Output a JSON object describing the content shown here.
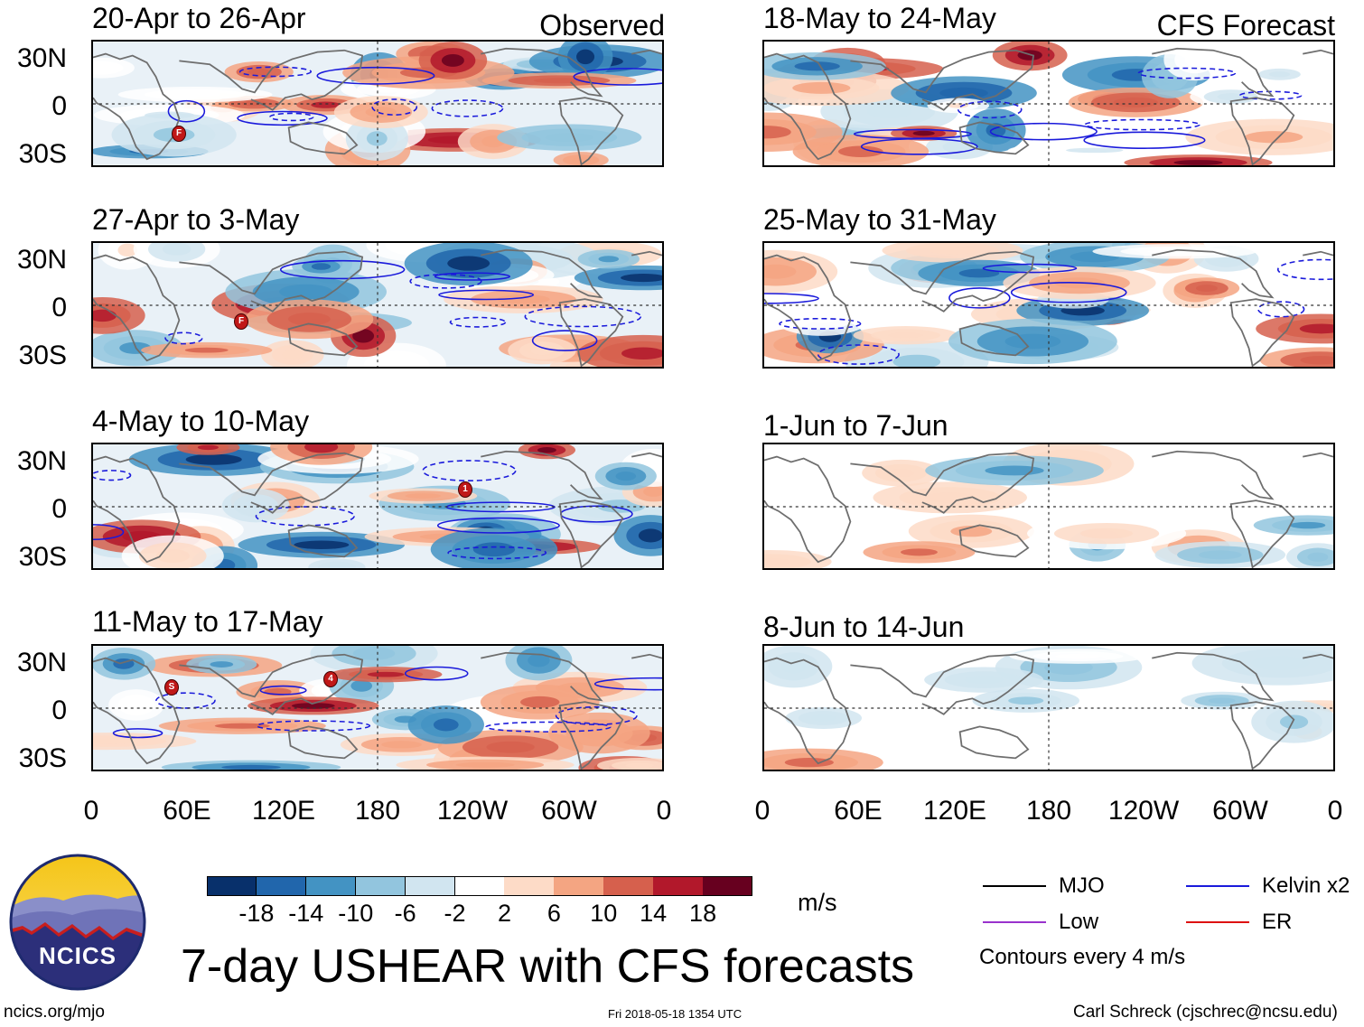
{
  "header": {
    "left_label": "Observed",
    "right_label": "CFS Forecast"
  },
  "observed_panels": [
    {
      "title": "20-Apr to 26-Apr"
    },
    {
      "title": "27-Apr to 3-May"
    },
    {
      "title": "4-May to 10-May"
    },
    {
      "title": "11-May to 17-May"
    }
  ],
  "forecast_panels": [
    {
      "title": "18-May to 24-May"
    },
    {
      "title": "25-May to 31-May"
    },
    {
      "title": "1-Jun to 7-Jun"
    },
    {
      "title": "8-Jun to 14-Jun"
    }
  ],
  "y_axis": [
    "30N",
    "0",
    "30S"
  ],
  "x_axis": [
    "0",
    "60E",
    "120E",
    "180",
    "120W",
    "60W",
    "0"
  ],
  "colorbar": {
    "units": "m/s",
    "labels": [
      "-18",
      "-14",
      "-10",
      "-6",
      "-2",
      "2",
      "6",
      "10",
      "14",
      "18"
    ],
    "colors": [
      "#08306b",
      "#2166ac",
      "#4393c3",
      "#92c5de",
      "#d1e5f0",
      "#ffffff",
      "#fddbc7",
      "#f4a582",
      "#d6604d",
      "#b2182b",
      "#67001f"
    ]
  },
  "legend": {
    "items": [
      {
        "label": "MJO",
        "color": "#000000"
      },
      {
        "label": "Kelvin x2",
        "color": "#1a1adb"
      },
      {
        "label": "Low",
        "color": "#9932cc"
      },
      {
        "label": "ER",
        "color": "#dd1111"
      }
    ],
    "note": "Contours every 4 m/s"
  },
  "logo": {
    "text": "NCICS"
  },
  "main_title": "7-day USHEAR with CFS forecasts",
  "footer": {
    "url": "ncics.org/mjo",
    "timestamp": "Fri 2018-05-18 1354 UTC",
    "author": "Carl Schreck (cjschrec@ncsu.edu)"
  },
  "storm_markers": [
    {
      "panel": "observed-1",
      "label": "F"
    },
    {
      "panel": "observed-2",
      "label": "F"
    },
    {
      "panel": "observed-3",
      "label": "1"
    },
    {
      "panel": "observed-4",
      "label": "S"
    },
    {
      "panel": "observed-4",
      "label": "4"
    }
  ]
}
